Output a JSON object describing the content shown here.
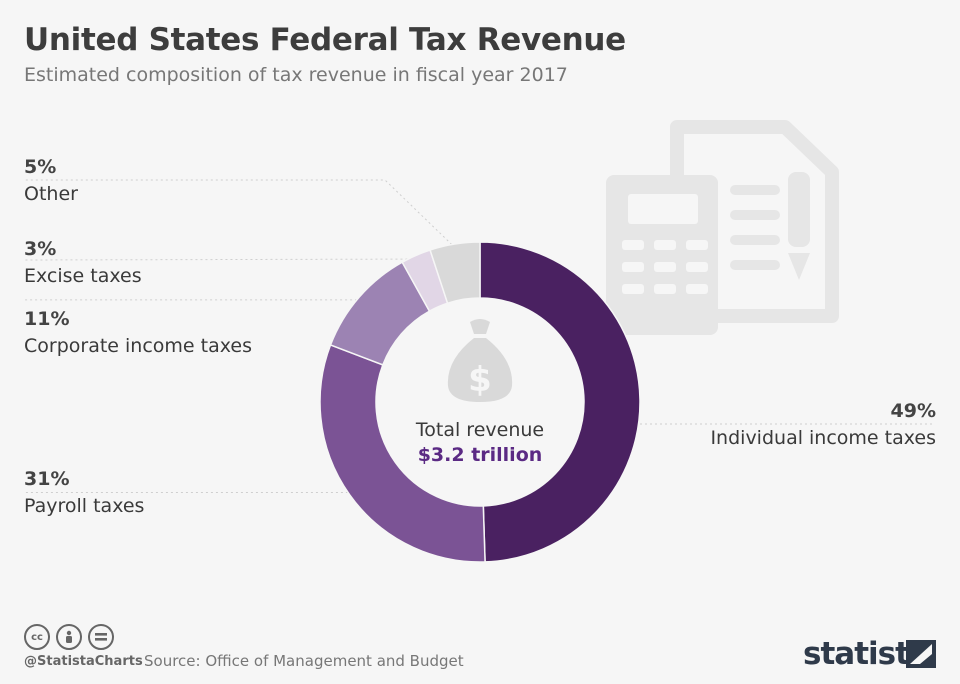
{
  "header": {
    "title": "United States Federal Tax Revenue",
    "subtitle": "Estimated composition of tax revenue in fiscal year 2017"
  },
  "center": {
    "label": "Total revenue",
    "value": "$3.2 trillion"
  },
  "chart_data": {
    "type": "pie",
    "categories": [
      "Individual income taxes",
      "Payroll taxes",
      "Corporate income taxes",
      "Excise taxes",
      "Other"
    ],
    "values": [
      49,
      31,
      11,
      3,
      5
    ],
    "labels": [
      "49%",
      "31%",
      "11%",
      "3%",
      "5%"
    ],
    "colors": [
      "#4a2161",
      "#7b5395",
      "#9c83b3",
      "#e1d6e6",
      "#d9d9d9"
    ]
  },
  "footer": {
    "cc_icons": [
      "cc-icon",
      "by-icon",
      "nd-icon"
    ],
    "handle": "@StatistaCharts",
    "source": "Source: Office of Management and Budget",
    "brand": "statista"
  }
}
